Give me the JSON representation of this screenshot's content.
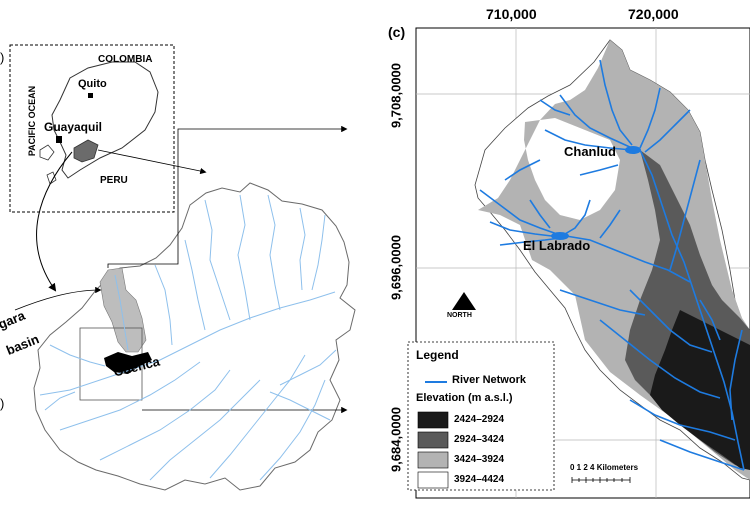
{
  "inset": {
    "label_top": ")",
    "colombia": "COLOMBIA",
    "peru": "PERU",
    "pacific_ocean": "PACIFIC OCEAN",
    "quito": "Quito",
    "guayaquil": "Guayaquil"
  },
  "left_map": {
    "basin_label_1": "gara",
    "basin_label_2": "basin",
    "city": "Cuenca",
    "label_bottom": ")"
  },
  "right_map": {
    "panel_label": "(c)",
    "x_ticks": [
      "710,000",
      "720,000"
    ],
    "y_ticks": [
      "9,708,0000",
      "9,696,0000",
      "9,684,0000"
    ],
    "places": {
      "chanlud": "Chanlud",
      "el_labrado": "El Labrado"
    },
    "north_label": "NORTH",
    "scale_label": "0  1  2      4 Kilometers"
  },
  "legend": {
    "title": "Legend",
    "river_label": "River Network",
    "elevation_title": "Elevation (m a.s.l.)",
    "classes": [
      {
        "label": "2424–2924",
        "color": "#1a1a1a"
      },
      {
        "label": "2924–3424",
        "color": "#5a5a5a"
      },
      {
        "label": "3424–3924",
        "color": "#b3b3b3"
      },
      {
        "label": "3924–4424",
        "color": "#ffffff"
      }
    ]
  },
  "colors": {
    "river": "#1e7be0",
    "river_light": "#8ec0ec",
    "outline": "#666666"
  }
}
